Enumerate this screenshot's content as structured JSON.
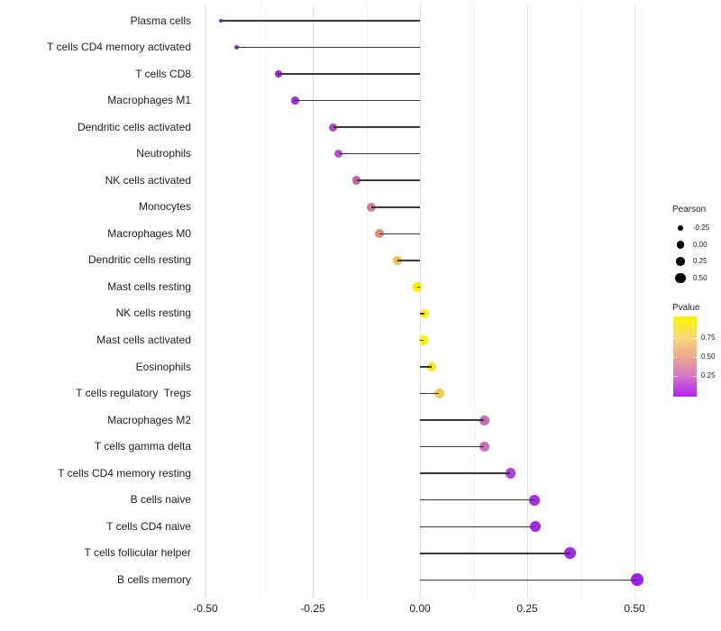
{
  "chart_data": {
    "type": "lollipop",
    "title": "",
    "xlabel": "",
    "ylabel": "",
    "xlim": [
      -0.52,
      0.54
    ],
    "grid": "vertical-only",
    "categories": [
      "Plasma cells",
      "T cells CD4 memory activated",
      "T cells CD8",
      "Macrophages M1",
      "Dendritic cells activated",
      "Neutrophils",
      "NK cells activated",
      "Monocytes",
      "Macrophages M0",
      "Dendritic cells resting",
      "Mast cells resting",
      "NK cells resting",
      "Mast cells activated",
      "Eosinophils",
      "T cells regulatory  Tregs",
      "Macrophages M2",
      "T cells gamma delta",
      "T cells CD4 memory resting",
      "B cells naive",
      "T cells CD4 naive",
      "T cells follicular helper",
      "B cells memory"
    ],
    "points": [
      {
        "label": "Plasma cells",
        "pearson": -0.464,
        "r": 2.0,
        "color": "#8c2be0"
      },
      {
        "label": "T cells CD4 memory activated",
        "pearson": -0.428,
        "r": 2.6,
        "color": "#982be2"
      },
      {
        "label": "T cells CD8",
        "pearson": -0.329,
        "r": 4.0,
        "color": "#a126e0"
      },
      {
        "label": "Macrophages M1",
        "pearson": -0.291,
        "r": 4.4,
        "color": "#a62cd9"
      },
      {
        "label": "Dendritic cells activated",
        "pearson": -0.202,
        "r": 4.6,
        "color": "#af46d2"
      },
      {
        "label": "Neutrophils",
        "pearson": -0.19,
        "r": 4.6,
        "color": "#ba50c8"
      },
      {
        "label": "NK cells activated",
        "pearson": -0.148,
        "r": 4.8,
        "color": "#c75faf"
      },
      {
        "label": "Monocytes",
        "pearson": -0.114,
        "r": 5.0,
        "color": "#d87b91"
      },
      {
        "label": "Macrophages M0",
        "pearson": -0.094,
        "r": 5.0,
        "color": "#de8e76"
      },
      {
        "label": "Dendritic cells resting",
        "pearson": -0.052,
        "r": 5.1,
        "color": "#ecc156"
      },
      {
        "label": "Mast cells resting",
        "pearson": -0.006,
        "r": 5.2,
        "color": "#fbf100"
      },
      {
        "label": "NK cells resting",
        "pearson": 0.01,
        "r": 5.2,
        "color": "#fcf200"
      },
      {
        "label": "Mast cells activated",
        "pearson": 0.008,
        "r": 5.2,
        "color": "#fcf201"
      },
      {
        "label": "Eosinophils",
        "pearson": 0.027,
        "r": 5.3,
        "color": "#f8e71b"
      },
      {
        "label": "T cells regulatory  Tregs",
        "pearson": 0.045,
        "r": 5.5,
        "color": "#f0cd4e"
      },
      {
        "label": "Macrophages M2",
        "pearson": 0.15,
        "r": 5.6,
        "color": "#cc6cb8"
      },
      {
        "label": "T cells gamma delta",
        "pearson": 0.15,
        "r": 5.6,
        "color": "#cc6db9"
      },
      {
        "label": "T cells CD4 memory resting",
        "pearson": 0.211,
        "r": 5.9,
        "color": "#b73fdc"
      },
      {
        "label": "B cells naive",
        "pearson": 0.267,
        "r": 6.0,
        "color": "#a42ae8"
      },
      {
        "label": "T cells CD4 naive",
        "pearson": 0.268,
        "r": 6.0,
        "color": "#a42ae8"
      },
      {
        "label": "T cells follicular helper",
        "pearson": 0.35,
        "r": 6.4,
        "color": "#a027ec"
      },
      {
        "label": "B cells memory",
        "pearson": 0.506,
        "r": 6.9,
        "color": "#9d1ff0"
      }
    ],
    "x_ticks": [
      {
        "value": -0.5,
        "label": "-0.50"
      },
      {
        "value": -0.25,
        "label": "-0.25"
      },
      {
        "value": 0.0,
        "label": "0.00"
      },
      {
        "value": 0.25,
        "label": "0.25"
      },
      {
        "value": 0.5,
        "label": "0.50"
      }
    ],
    "x_minor": [
      -0.375,
      -0.125,
      0.125,
      0.375
    ],
    "legend_size": {
      "title": "Pearson",
      "entries": [
        {
          "label": "-0.25",
          "r": 3.2
        },
        {
          "label": "0.00",
          "r": 4.2
        },
        {
          "label": "0.25",
          "r": 4.9
        },
        {
          "label": "0.50",
          "r": 5.6
        }
      ],
      "dot_color": "#000000"
    },
    "legend_color": {
      "title": "Pvalue",
      "ticks": [
        {
          "label": "0.75",
          "pos": 0.27
        },
        {
          "label": "0.50",
          "pos": 0.505
        },
        {
          "label": "0.25",
          "pos": 0.745
        }
      ],
      "gradient_top": "#fff500",
      "gradient_mid": "#eca98f",
      "gradient_bottom": "#ac24f2"
    },
    "colors": {
      "stem": "#3a3a3a",
      "grid_major": "#e4e4e4",
      "grid_minor": "#f3f3f3",
      "axis_text": "#1f1f1f",
      "background": "#ffffff"
    }
  }
}
